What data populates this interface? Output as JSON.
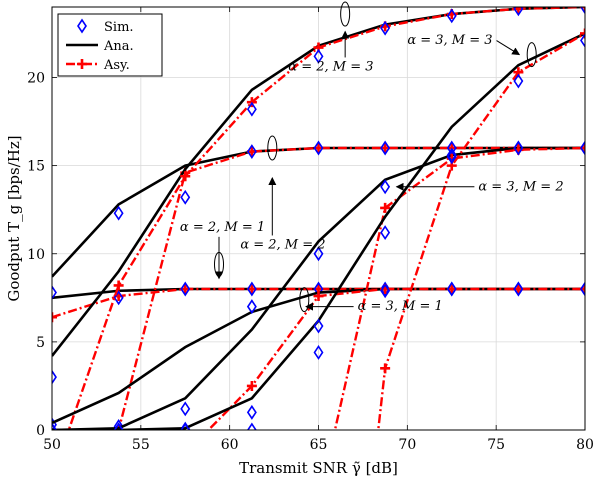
{
  "chart_data": {
    "type": "line",
    "title": "",
    "xlabel": "Transmit SNR γ̃ [dB]",
    "ylabel": "Goodput T_g [bps/Hz]",
    "xlim": [
      50,
      80
    ],
    "ylim": [
      0,
      24
    ],
    "xticks": [
      50,
      55,
      60,
      65,
      70,
      75,
      80
    ],
    "yticks": [
      0,
      5,
      10,
      15,
      20
    ],
    "grid": true,
    "legend": {
      "placement": "top-left",
      "entries": [
        {
          "label": "Sim.",
          "style": "marker",
          "color": "#0000ff"
        },
        {
          "label": "Ana.",
          "style": "solid",
          "color": "#000000"
        },
        {
          "label": "Asy.",
          "style": "dashdot",
          "color": "#ff0000"
        }
      ]
    },
    "x": [
      50,
      53.75,
      57.5,
      61.25,
      65,
      68.75,
      72.5,
      76.25,
      80
    ],
    "series": [
      {
        "case": "a2M1",
        "sim": [
          7.8,
          7.5,
          8.0,
          8.0,
          8.0,
          8.0,
          8.0,
          8.0,
          8.0
        ],
        "ana": [
          7.5,
          7.9,
          8.0,
          8.0,
          8.0,
          8.0,
          8.0,
          8.0,
          8.0
        ],
        "asy": [
          6.4,
          7.6,
          8.0,
          8.0,
          8.0,
          8.0,
          8.0,
          8.0,
          8.0
        ]
      },
      {
        "case": "a2M2",
        "sim": [
          3.0,
          12.3,
          13.2,
          15.8,
          16.0,
          16.0,
          16.0,
          16.0,
          16.0
        ],
        "ana": [
          8.7,
          12.8,
          15.0,
          15.8,
          16.0,
          16.0,
          16.0,
          16.0,
          16.0
        ],
        "asy": [
          -1,
          0,
          14.6,
          15.8,
          16.0,
          16.0,
          16.0,
          16.0,
          16.0
        ]
      },
      {
        "case": "a2M3",
        "sim": [
          0.3,
          0.2,
          1.2,
          18.2,
          21.2,
          22.8,
          23.5,
          23.9,
          24.0
        ],
        "ana": [
          4.2,
          9.0,
          14.8,
          19.3,
          21.8,
          23.0,
          23.6,
          23.9,
          24.0
        ],
        "asy": [
          -1,
          8.2,
          14.4,
          18.6,
          21.7,
          22.9,
          23.6,
          23.9,
          24.0
        ]
      },
      {
        "case": "a3M1",
        "sim": [
          0.0,
          0.0,
          0.05,
          7.0,
          4.4,
          7.9,
          8.0,
          8.0,
          8.0
        ],
        "ana": [
          0.4,
          2.1,
          4.7,
          6.7,
          7.8,
          8.0,
          8.0,
          8.0,
          8.0
        ],
        "asy": [
          -1,
          -1,
          -1,
          2.5,
          7.6,
          8.0,
          8.0,
          8.0,
          8.0
        ]
      },
      {
        "case": "a3M2",
        "sim": [
          0.0,
          0.0,
          0.0,
          1.0,
          10.0,
          13.8,
          15.6,
          16.0,
          16.0
        ],
        "ana": [
          0.0,
          0.1,
          1.8,
          5.7,
          10.7,
          14.2,
          15.6,
          16.0,
          16.0
        ],
        "asy": [
          -1,
          -1,
          -1,
          -1,
          -1,
          12.6,
          15.4,
          15.9,
          16.0
        ],
        "asy_vertical_x": 65.8
      },
      {
        "case": "a3M3",
        "sim": [
          0.0,
          0.0,
          0.0,
          0.0,
          5.9,
          11.2,
          15.5,
          19.8,
          22.1
        ],
        "ana": [
          0.0,
          0.0,
          0.1,
          1.8,
          6.2,
          12.1,
          17.2,
          20.7,
          22.5
        ],
        "asy": [
          -1,
          -1,
          -1,
          -1,
          -1,
          3.5,
          15.0,
          20.3,
          22.5
        ],
        "asy_vertical_x": 68.3
      }
    ],
    "annotations": [
      {
        "text": "α = 2, M = 1",
        "x": 57.2,
        "y": 11.3,
        "ellipse": [
          59.4,
          9.4
        ],
        "arrow_to": [
          59.4,
          8.6
        ]
      },
      {
        "text": "α = 2, M = 2",
        "x": 60.6,
        "y": 10.3,
        "ellipse": [
          62.4,
          16.0
        ],
        "arrow_to": [
          62.4,
          14.3
        ]
      },
      {
        "text": "α = 2, M = 3",
        "x": 63.3,
        "y": 20.4,
        "ellipse": [
          66.5,
          23.6
        ],
        "arrow_to": [
          66.5,
          22.6
        ]
      },
      {
        "text": "α = 3, M = 1",
        "x": 67.2,
        "y": 6.8,
        "ellipse": [
          64.2,
          7.4
        ],
        "arrow_to": [
          64.3,
          7.0
        ]
      },
      {
        "text": "α = 3, M = 2",
        "x": 74.0,
        "y": 13.6,
        "ellipse": null,
        "arrow_to": [
          69.4,
          13.8
        ]
      },
      {
        "text": "α = 3, M = 3",
        "x": 70.0,
        "y": 21.9,
        "ellipse": [
          77.0,
          21.3
        ],
        "arrow_to": [
          76.3,
          21.3
        ]
      }
    ]
  }
}
